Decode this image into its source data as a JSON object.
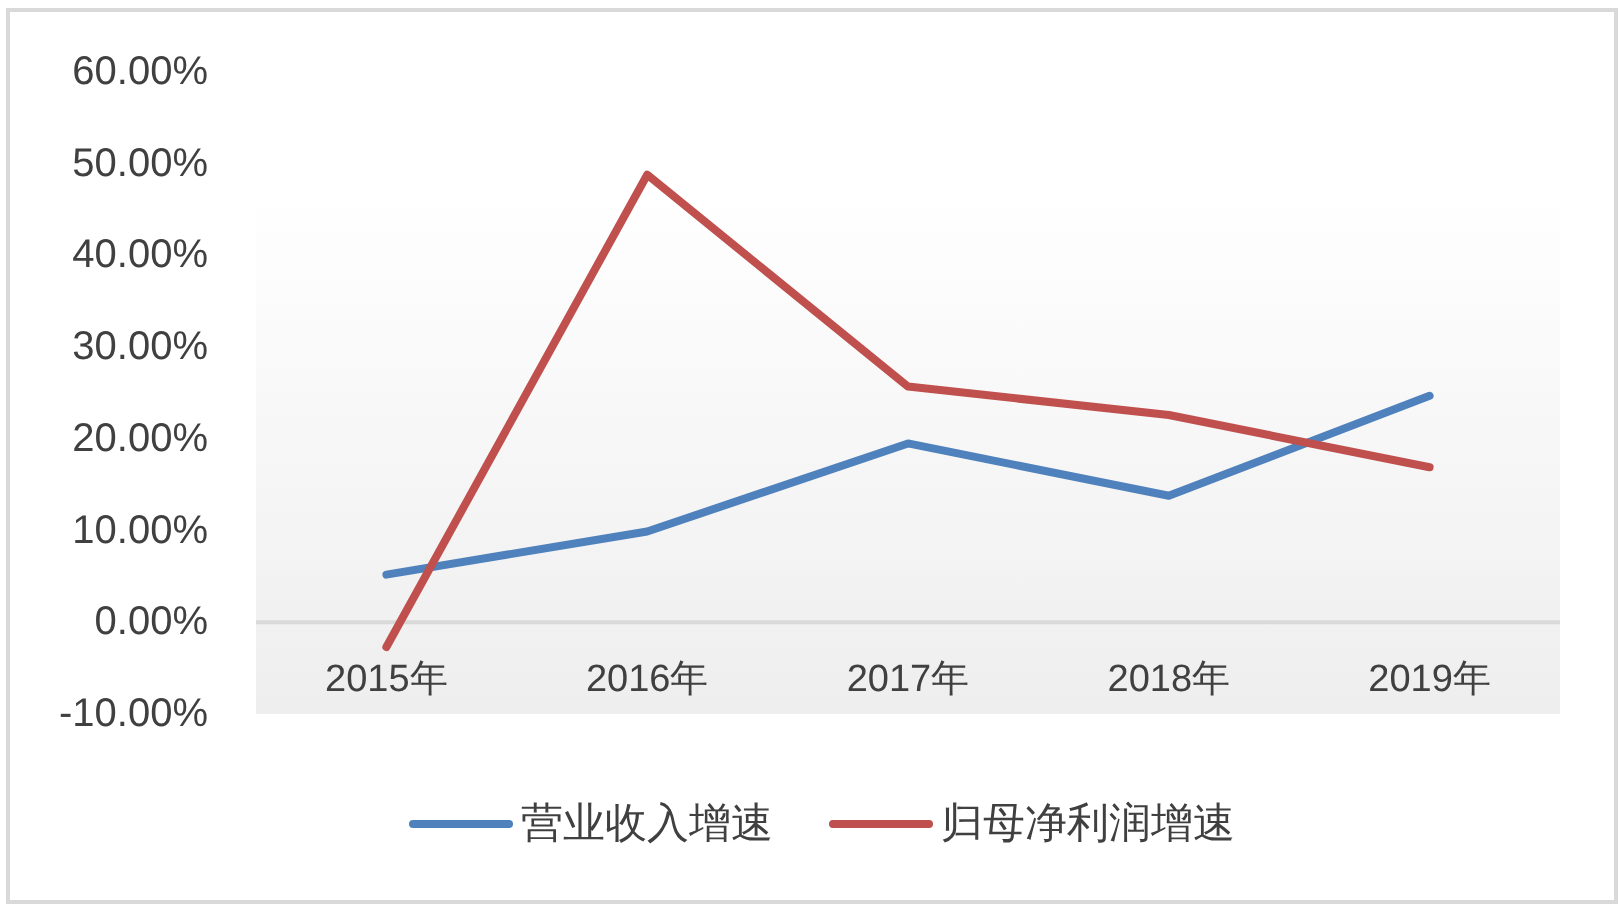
{
  "chart_data": {
    "type": "line",
    "categories": [
      "2015年",
      "2016年",
      "2017年",
      "2018年",
      "2019年"
    ],
    "series": [
      {
        "name": "营业收入增速",
        "color": "#4f81bd",
        "values": [
          5.2,
          9.9,
          19.5,
          13.8,
          24.7
        ]
      },
      {
        "name": "归母净利润增速",
        "color": "#c0504d",
        "values": [
          -2.7,
          48.8,
          25.7,
          22.6,
          16.9
        ]
      }
    ],
    "ylim": [
      -10,
      60
    ],
    "yticks": [
      {
        "value": -10,
        "label": "-10.00%"
      },
      {
        "value": 0,
        "label": "0.00%"
      },
      {
        "value": 10,
        "label": "10.00%"
      },
      {
        "value": 20,
        "label": "20.00%"
      },
      {
        "value": 30,
        "label": "30.00%"
      },
      {
        "value": 40,
        "label": "40.00%"
      },
      {
        "value": 50,
        "label": "50.00%"
      },
      {
        "value": 60,
        "label": "60.00%"
      }
    ],
    "legend": "bottom",
    "line_style": "solid"
  }
}
